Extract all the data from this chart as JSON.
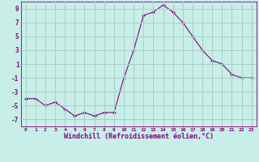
{
  "x": [
    0,
    1,
    2,
    3,
    4,
    5,
    6,
    7,
    8,
    9,
    10,
    11,
    12,
    13,
    14,
    15,
    16,
    17,
    18,
    19,
    20,
    21,
    22,
    23
  ],
  "y": [
    -4,
    -4,
    -5,
    -4.5,
    -5.5,
    -6.5,
    -6,
    -6.5,
    -6,
    -6,
    -1,
    3,
    8,
    8.5,
    9.5,
    8.5,
    7,
    5,
    3,
    1.5,
    1,
    -0.5,
    -1,
    -1
  ],
  "line_color": "#800080",
  "marker": "+",
  "bg_color": "#c8eee8",
  "grid_color": "#a8cec8",
  "xlabel": "Windchill (Refroidissement éolien,°C)",
  "ylim": [
    -8,
    10
  ],
  "xlim": [
    -0.5,
    23.5
  ],
  "yticks": [
    -7,
    -5,
    -3,
    -1,
    1,
    3,
    5,
    7,
    9
  ],
  "xticks": [
    0,
    1,
    2,
    3,
    4,
    5,
    6,
    7,
    8,
    9,
    10,
    11,
    12,
    13,
    14,
    15,
    16,
    17,
    18,
    19,
    20,
    21,
    22,
    23
  ],
  "tick_color": "#800080",
  "label_color": "#800080",
  "axis_color": "#800080"
}
